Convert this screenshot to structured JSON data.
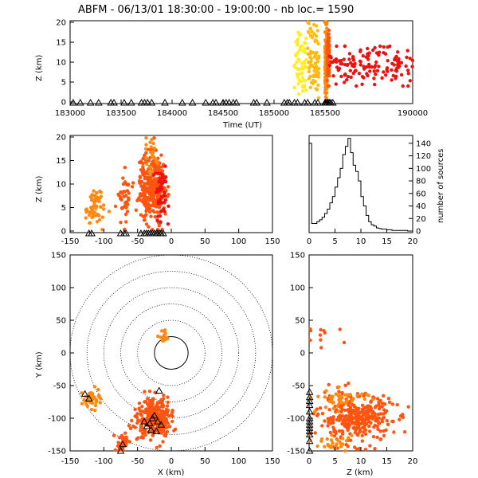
{
  "header": {
    "title": "ABFM - 06/13/01 18:30:00 - 19:00:00 - nb loc.=    1590"
  },
  "colors": {
    "yellow": "#ffee22",
    "gold": "#ffbb11",
    "orange": "#ff8811",
    "darkorange": "#ff5511",
    "red": "#ee1111",
    "axis": "#000000"
  },
  "chart_data": [
    {
      "panel": "time-height",
      "type": "scatter",
      "xlabel": "Time (UT)",
      "ylabel": "Z (km)",
      "xlim": [
        183000,
        190000
      ],
      "ylim": [
        0,
        20
      ],
      "xticks": [
        183000,
        183500,
        184000,
        184500,
        185000,
        185500,
        190000
      ],
      "xtick_labels": [
        "183000",
        "183500",
        "184000",
        "184500",
        "185000",
        "185500",
        "190000"
      ],
      "yticks": [
        0,
        5,
        10,
        15,
        20
      ],
      "clusters": [
        {
          "x0": 185200,
          "x1": 185320,
          "z0": 2,
          "z1": 19,
          "color": "yellow",
          "n": 60
        },
        {
          "x0": 185330,
          "x1": 185440,
          "z0": 1,
          "z1": 20,
          "color": "gold",
          "n": 70
        },
        {
          "x0": 185500,
          "x1": 185600,
          "z0": 0,
          "z1": 20,
          "color": "orange",
          "n": 150
        },
        {
          "x0": 185600,
          "x1": 185720,
          "z0": 4,
          "z1": 18,
          "color": "darkorange",
          "n": 70
        },
        {
          "x0": 185720,
          "x1": 190000,
          "z0": 4,
          "z1": 14,
          "color": "red",
          "n": 140
        }
      ],
      "triangles_x": [
        183030,
        183100,
        183200,
        183280,
        183400,
        183430,
        183530,
        183600,
        183700,
        183730,
        183760,
        183800,
        183930,
        184100,
        184200,
        184330,
        184400,
        184430,
        184500,
        184530,
        184560,
        184600,
        184630,
        184800,
        184830,
        184930,
        185100,
        185130,
        185150,
        185200,
        185230,
        185300,
        185330,
        185400,
        185430,
        185500,
        185530,
        185600,
        185630,
        185700,
        185730,
        185800,
        185900
      ]
    },
    {
      "panel": "x-height",
      "type": "scatter",
      "ylabel": "Z (km)",
      "xlim": [
        -150,
        150
      ],
      "ylim": [
        0,
        20
      ],
      "xticks": [
        -150,
        -100,
        -50,
        0,
        50,
        100,
        150
      ],
      "yticks": [
        0,
        5,
        10,
        15,
        20
      ],
      "clusters": [
        {
          "cx": -115,
          "cz": 5,
          "sx": 7,
          "sz": 2.2,
          "color": "orange",
          "n": 60
        },
        {
          "cx": -70,
          "cz": 7.5,
          "sx": 5,
          "sz": 2.5,
          "color": "darkorange",
          "n": 40
        },
        {
          "cx": -28,
          "cz": 9,
          "sx": 10,
          "sz": 3.5,
          "color": "darkorange",
          "n": 320
        },
        {
          "cx": -30,
          "cz": 16,
          "sx": 5,
          "sz": 2,
          "color": "orange",
          "n": 25
        },
        {
          "cx": -15,
          "cz": 8,
          "sx": 5,
          "sz": 3,
          "color": "red",
          "n": 50
        }
      ],
      "triangles_x": [
        -122,
        -118,
        -75,
        -70,
        -67,
        -45,
        -40,
        -37,
        -34,
        -31,
        -28,
        -25,
        -22,
        -20,
        -17,
        -15,
        -12
      ]
    },
    {
      "panel": "histogram",
      "type": "bar",
      "ylabel": "number of sources",
      "xlim": [
        0,
        20
      ],
      "ylim": [
        0,
        150
      ],
      "xticks": [
        0,
        5,
        10,
        15,
        20
      ],
      "yticks": [
        0,
        20,
        40,
        60,
        80,
        100,
        120,
        140
      ],
      "bin_width": 0.5,
      "values": [
        140,
        12,
        12,
        15,
        18,
        22,
        28,
        35,
        45,
        55,
        70,
        85,
        100,
        122,
        135,
        148,
        125,
        105,
        95,
        80,
        55,
        40,
        25,
        15,
        10,
        8,
        5,
        4,
        3,
        3,
        2,
        2,
        1,
        1,
        1,
        1,
        1,
        1,
        0,
        0
      ]
    },
    {
      "panel": "plan-view",
      "type": "scatter",
      "xlabel": "X (km)",
      "ylabel": "Y (km)",
      "xlim": [
        -150,
        150
      ],
      "ylim": [
        -150,
        150
      ],
      "xticks": [
        -150,
        -100,
        -50,
        0,
        50,
        100,
        150
      ],
      "yticks": [
        -150,
        -100,
        -50,
        0,
        50,
        100,
        150
      ],
      "ring_radii": [
        25,
        50,
        75,
        100,
        125,
        150
      ],
      "clusters": [
        {
          "cx": -120,
          "cy": -70,
          "sx": 8,
          "sy": 8,
          "color": "orange",
          "n": 40
        },
        {
          "cx": -72,
          "cy": -140,
          "sx": 5,
          "sy": 8,
          "color": "darkorange",
          "n": 40
        },
        {
          "cx": -25,
          "cy": -100,
          "sx": 12,
          "sy": 15,
          "color": "darkorange",
          "n": 300
        },
        {
          "cx": -10,
          "cy": 25,
          "sx": 4,
          "sy": 6,
          "color": "orange",
          "n": 15
        }
      ],
      "triangles": [
        [
          -128,
          -63
        ],
        [
          -122,
          -70
        ],
        [
          -75,
          -150
        ],
        [
          -72,
          -140
        ],
        [
          -40,
          -105
        ],
        [
          -36,
          -112
        ],
        [
          -32,
          -108
        ],
        [
          -30,
          -118
        ],
        [
          -28,
          -100
        ],
        [
          -25,
          -96
        ],
        [
          -22,
          -120
        ],
        [
          -20,
          -105
        ],
        [
          -18,
          -58
        ],
        [
          -15,
          -110
        ]
      ]
    },
    {
      "panel": "height-y",
      "type": "scatter",
      "xlabel": "Z (km)",
      "xlim": [
        0,
        20
      ],
      "ylim": [
        -150,
        150
      ],
      "xticks": [
        0,
        5,
        10,
        15,
        20
      ],
      "yticks": [
        -150,
        -100,
        -50,
        0,
        50,
        100,
        150
      ],
      "clusters": [
        {
          "cz": 9,
          "cy": -100,
          "sz": 3.5,
          "sy": 18,
          "color": "darkorange",
          "n": 330
        },
        {
          "cz": 6,
          "cy": -70,
          "sz": 3,
          "sy": 8,
          "color": "orange",
          "n": 40
        },
        {
          "cz": 3,
          "cy": 28,
          "sz": 2,
          "sy": 6,
          "color": "darkorange",
          "n": 12
        },
        {
          "cz": 5,
          "cy": -140,
          "sz": 2,
          "sy": 8,
          "color": "orange",
          "n": 30
        }
      ],
      "triangles_y": [
        -60,
        -68,
        -74,
        -80,
        -90,
        -100,
        -105,
        -110,
        -115,
        -120,
        -125,
        -135,
        -150
      ]
    }
  ]
}
